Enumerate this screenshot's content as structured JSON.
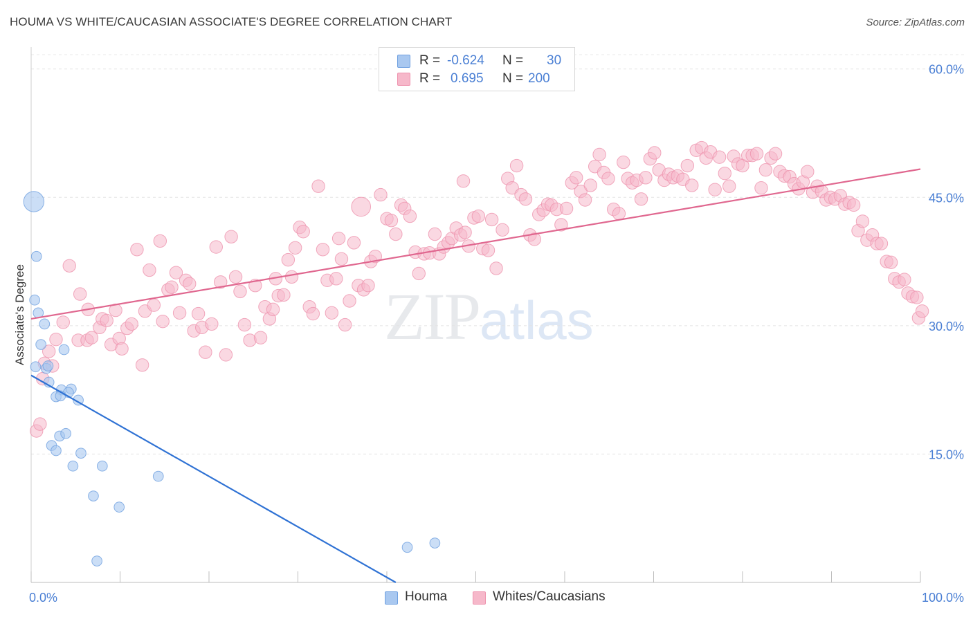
{
  "title": "HOUMA VS WHITE/CAUCASIAN ASSOCIATE'S DEGREE CORRELATION CHART",
  "source": "Source: ZipAtlas.com",
  "watermark": {
    "zip": "ZIP",
    "atlas": "atlas"
  },
  "legend_top": [
    {
      "r_label": "R =",
      "r_value": "-0.624",
      "n_label": "N =",
      "n_value": "30",
      "color": "#a9c8f0"
    },
    {
      "r_label": "R =",
      "r_value": "0.695",
      "n_label": "N =",
      "n_value": "200",
      "color": "#f6b8ca"
    }
  ],
  "legend_bottom": [
    {
      "label": "Houma",
      "color": "#a9c8f0"
    },
    {
      "label": "Whites/Caucasians",
      "color": "#f6b8ca"
    }
  ],
  "chart_data": {
    "type": "scatter",
    "title": "HOUMA VS WHITE/CAUCASIAN ASSOCIATE'S DEGREE CORRELATION CHART",
    "xlabel": "",
    "ylabel": "Associate's Degree",
    "xlim": [
      0,
      100
    ],
    "ylim": [
      0,
      62
    ],
    "x_tick_labels": [
      "0.0%",
      "100.0%"
    ],
    "y_ticks": [
      15,
      30,
      45,
      60
    ],
    "y_tick_labels": [
      "15.0%",
      "30.0%",
      "45.0%",
      "60.0%"
    ],
    "grid": true,
    "legend_placement": "top-center",
    "colors": {
      "houma_fill": "#a9c8f0",
      "houma_stroke": "#6fa0e0",
      "houma_line": "#2f72d4",
      "white_fill": "#f6b8ca",
      "white_stroke": "#ee93ae",
      "white_line": "#e0678f",
      "tick_label": "#4a7fd4"
    },
    "series": [
      {
        "name": "Houma",
        "trend": {
          "x": [
            0,
            41
          ],
          "y": [
            24.2,
            0
          ]
        },
        "points": [
          [
            0.3,
            44.5,
            14
          ],
          [
            0.6,
            38.1,
            7
          ],
          [
            0.4,
            33.0,
            7
          ],
          [
            0.8,
            31.5,
            7
          ],
          [
            1.5,
            30.2,
            7
          ],
          [
            1.1,
            27.8,
            7
          ],
          [
            3.7,
            27.2,
            7
          ],
          [
            1.7,
            25.0,
            7
          ],
          [
            1.9,
            25.3,
            7
          ],
          [
            2.0,
            23.4,
            7
          ],
          [
            3.4,
            22.5,
            7
          ],
          [
            4.5,
            22.6,
            7
          ],
          [
            4.2,
            22.2,
            7
          ],
          [
            2.8,
            21.7,
            7
          ],
          [
            3.3,
            21.8,
            7
          ],
          [
            5.3,
            21.3,
            7
          ],
          [
            3.2,
            17.1,
            7
          ],
          [
            3.9,
            17.4,
            7
          ],
          [
            2.3,
            16.0,
            7
          ],
          [
            2.8,
            15.4,
            7
          ],
          [
            5.6,
            15.1,
            7
          ],
          [
            4.7,
            13.6,
            7
          ],
          [
            8.0,
            13.6,
            7
          ],
          [
            14.3,
            12.4,
            7
          ],
          [
            7.0,
            10.1,
            7
          ],
          [
            9.9,
            8.8,
            7
          ],
          [
            7.4,
            2.5,
            7
          ],
          [
            42.3,
            4.1,
            7
          ],
          [
            45.4,
            4.6,
            7
          ],
          [
            0.5,
            25.2,
            7
          ]
        ]
      },
      {
        "name": "Whites/Caucasians",
        "trend": {
          "x": [
            0,
            100
          ],
          "y": [
            30.8,
            48.3
          ]
        },
        "points": [
          [
            0.6,
            17.7,
            8
          ],
          [
            1.0,
            18.5,
            8
          ],
          [
            1.3,
            23.8,
            8
          ],
          [
            1.5,
            25.6,
            8
          ],
          [
            2.0,
            27.0,
            8
          ],
          [
            2.4,
            25.3,
            8
          ],
          [
            2.8,
            28.4,
            8
          ],
          [
            3.6,
            30.4,
            8
          ],
          [
            4.3,
            37.0,
            8
          ],
          [
            5.3,
            28.3,
            8
          ],
          [
            5.5,
            33.7,
            8
          ],
          [
            6.3,
            28.3,
            8
          ],
          [
            6.4,
            31.9,
            8
          ],
          [
            6.8,
            28.6,
            8
          ],
          [
            7.7,
            29.8,
            8
          ],
          [
            8.0,
            30.8,
            8
          ],
          [
            8.5,
            30.6,
            8
          ],
          [
            9.0,
            27.8,
            8
          ],
          [
            9.5,
            31.8,
            8
          ],
          [
            9.9,
            28.5,
            8
          ],
          [
            10.2,
            27.3,
            8
          ],
          [
            10.8,
            29.7,
            8
          ],
          [
            11.3,
            30.2,
            8
          ],
          [
            11.9,
            38.9,
            8
          ],
          [
            12.5,
            25.4,
            8
          ],
          [
            12.8,
            31.7,
            8
          ],
          [
            13.3,
            36.5,
            8
          ],
          [
            13.8,
            32.4,
            8
          ],
          [
            14.5,
            39.9,
            8
          ],
          [
            14.8,
            30.5,
            8
          ],
          [
            15.4,
            34.2,
            8
          ],
          [
            15.8,
            34.5,
            8
          ],
          [
            16.3,
            36.2,
            8
          ],
          [
            16.7,
            31.5,
            8
          ],
          [
            17.4,
            35.3,
            8
          ],
          [
            17.8,
            34.9,
            8
          ],
          [
            18.3,
            29.4,
            8
          ],
          [
            18.8,
            31.4,
            8
          ],
          [
            19.2,
            29.8,
            8
          ],
          [
            19.6,
            26.9,
            8
          ],
          [
            20.3,
            30.2,
            8
          ],
          [
            20.8,
            39.2,
            8
          ],
          [
            21.3,
            35.1,
            8
          ],
          [
            21.9,
            26.6,
            8
          ],
          [
            22.5,
            40.4,
            8
          ],
          [
            23.0,
            35.7,
            8
          ],
          [
            23.5,
            34.0,
            8
          ],
          [
            24.0,
            30.1,
            8
          ],
          [
            24.6,
            28.3,
            8
          ],
          [
            25.2,
            34.7,
            8
          ],
          [
            25.8,
            28.6,
            8
          ],
          [
            26.3,
            32.2,
            8
          ],
          [
            26.8,
            30.8,
            8
          ],
          [
            27.2,
            31.9,
            8
          ],
          [
            27.8,
            33.5,
            8
          ],
          [
            28.4,
            33.6,
            8
          ],
          [
            28.9,
            37.7,
            8
          ],
          [
            29.3,
            35.7,
            8
          ],
          [
            29.7,
            39.1,
            8
          ],
          [
            30.2,
            41.5,
            8
          ],
          [
            30.6,
            41.0,
            8
          ],
          [
            31.3,
            32.2,
            8
          ],
          [
            31.7,
            31.4,
            8
          ],
          [
            32.3,
            46.3,
            8
          ],
          [
            32.8,
            38.9,
            8
          ],
          [
            33.3,
            35.3,
            8
          ],
          [
            33.8,
            31.5,
            8
          ],
          [
            34.3,
            35.5,
            8
          ],
          [
            34.9,
            37.8,
            8
          ],
          [
            35.3,
            30.1,
            8
          ],
          [
            35.8,
            32.9,
            8
          ],
          [
            36.3,
            39.7,
            8
          ],
          [
            36.8,
            34.7,
            8
          ],
          [
            37.4,
            34.2,
            8
          ],
          [
            37.9,
            34.7,
            8
          ],
          [
            38.2,
            37.5,
            8
          ],
          [
            38.7,
            38.1,
            8
          ],
          [
            39.3,
            45.3,
            8
          ],
          [
            40.0,
            42.5,
            8
          ],
          [
            40.5,
            42.3,
            8
          ],
          [
            41.0,
            40.7,
            8
          ],
          [
            41.6,
            44.1,
            8
          ],
          [
            42.0,
            43.7,
            8
          ],
          [
            42.6,
            42.8,
            8
          ],
          [
            43.2,
            38.6,
            8
          ],
          [
            43.6,
            36.1,
            8
          ],
          [
            44.2,
            38.4,
            8
          ],
          [
            44.8,
            38.5,
            8
          ],
          [
            45.4,
            40.7,
            8
          ],
          [
            45.9,
            38.4,
            8
          ],
          [
            46.4,
            39.2,
            8
          ],
          [
            46.9,
            39.7,
            8
          ],
          [
            47.3,
            40.2,
            8
          ],
          [
            47.8,
            41.4,
            8
          ],
          [
            48.3,
            40.6,
            8
          ],
          [
            48.8,
            40.9,
            8
          ],
          [
            49.2,
            39.3,
            8
          ],
          [
            49.8,
            42.6,
            8
          ],
          [
            50.3,
            42.8,
            8
          ],
          [
            50.8,
            39.0,
            8
          ],
          [
            51.4,
            38.8,
            8
          ],
          [
            51.8,
            42.4,
            8
          ],
          [
            52.3,
            36.7,
            8
          ],
          [
            53.0,
            41.2,
            8
          ],
          [
            53.6,
            47.2,
            8
          ],
          [
            54.1,
            46.1,
            8
          ],
          [
            54.6,
            48.7,
            8
          ],
          [
            55.1,
            45.3,
            8
          ],
          [
            55.6,
            44.8,
            8
          ],
          [
            56.1,
            40.6,
            8
          ],
          [
            56.6,
            40.1,
            8
          ],
          [
            57.1,
            43.0,
            8
          ],
          [
            57.6,
            43.5,
            8
          ],
          [
            58.1,
            44.2,
            8
          ],
          [
            58.5,
            44.1,
            8
          ],
          [
            59.1,
            43.6,
            8
          ],
          [
            59.6,
            41.8,
            8
          ],
          [
            60.2,
            43.7,
            8
          ],
          [
            60.8,
            46.7,
            8
          ],
          [
            61.3,
            47.3,
            8
          ],
          [
            61.8,
            45.7,
            8
          ],
          [
            62.3,
            44.7,
            8
          ],
          [
            62.9,
            46.4,
            8
          ],
          [
            63.4,
            48.6,
            8
          ],
          [
            63.9,
            50.0,
            8
          ],
          [
            64.4,
            47.9,
            8
          ],
          [
            64.9,
            47.2,
            8
          ],
          [
            65.5,
            43.6,
            8
          ],
          [
            66.1,
            43.1,
            8
          ],
          [
            66.6,
            49.1,
            8
          ],
          [
            67.1,
            47.2,
            8
          ],
          [
            67.6,
            46.7,
            8
          ],
          [
            68.1,
            47.0,
            8
          ],
          [
            68.6,
            44.8,
            8
          ],
          [
            69.1,
            47.3,
            8
          ],
          [
            69.6,
            49.5,
            8
          ],
          [
            70.1,
            50.2,
            8
          ],
          [
            70.6,
            48.2,
            8
          ],
          [
            71.2,
            47.0,
            8
          ],
          [
            71.7,
            47.7,
            8
          ],
          [
            72.2,
            47.3,
            8
          ],
          [
            72.7,
            47.5,
            8
          ],
          [
            73.3,
            47.1,
            8
          ],
          [
            73.8,
            48.7,
            8
          ],
          [
            74.3,
            46.4,
            8
          ],
          [
            74.8,
            50.5,
            8
          ],
          [
            75.4,
            50.8,
            8
          ],
          [
            75.9,
            49.6,
            8
          ],
          [
            76.4,
            50.3,
            8
          ],
          [
            76.9,
            45.9,
            8
          ],
          [
            77.4,
            49.7,
            8
          ],
          [
            78.0,
            47.8,
            8
          ],
          [
            78.5,
            46.3,
            8
          ],
          [
            79.0,
            49.8,
            8
          ],
          [
            79.5,
            48.9,
            8
          ],
          [
            80.0,
            48.7,
            8
          ],
          [
            80.6,
            49.9,
            8
          ],
          [
            81.1,
            49.9,
            8
          ],
          [
            81.6,
            50.1,
            8
          ],
          [
            82.1,
            46.1,
            8
          ],
          [
            82.6,
            48.2,
            8
          ],
          [
            83.2,
            49.6,
            8
          ],
          [
            83.7,
            50.1,
            8
          ],
          [
            84.2,
            48.0,
            8
          ],
          [
            84.7,
            47.5,
            8
          ],
          [
            85.3,
            47.4,
            8
          ],
          [
            85.8,
            46.6,
            8
          ],
          [
            86.3,
            46.0,
            8
          ],
          [
            86.8,
            46.8,
            8
          ],
          [
            87.3,
            48.0,
            8
          ],
          [
            87.9,
            45.6,
            8
          ],
          [
            88.4,
            46.3,
            8
          ],
          [
            88.9,
            45.7,
            8
          ],
          [
            89.4,
            44.7,
            8
          ],
          [
            89.9,
            45.0,
            8
          ],
          [
            90.4,
            44.8,
            8
          ],
          [
            91.0,
            45.2,
            8
          ],
          [
            91.5,
            44.2,
            8
          ],
          [
            92.0,
            44.4,
            8
          ],
          [
            92.5,
            44.1,
            8
          ],
          [
            93.0,
            41.1,
            8
          ],
          [
            93.5,
            42.2,
            8
          ],
          [
            94.0,
            40.0,
            8
          ],
          [
            94.6,
            40.6,
            8
          ],
          [
            95.1,
            39.6,
            8
          ],
          [
            95.6,
            39.6,
            8
          ],
          [
            96.2,
            37.5,
            8
          ],
          [
            96.7,
            37.4,
            8
          ],
          [
            97.1,
            35.5,
            8
          ],
          [
            97.6,
            35.1,
            8
          ],
          [
            98.2,
            35.4,
            8
          ],
          [
            98.6,
            33.8,
            8
          ],
          [
            99.1,
            33.4,
            8
          ],
          [
            99.6,
            33.3,
            8
          ],
          [
            99.8,
            30.9,
            8
          ],
          [
            100.2,
            31.7,
            8
          ],
          [
            37.1,
            43.9,
            12
          ],
          [
            34.6,
            40.2,
            8
          ],
          [
            27.5,
            35.5,
            8
          ],
          [
            48.6,
            46.9,
            8
          ]
        ]
      }
    ]
  }
}
